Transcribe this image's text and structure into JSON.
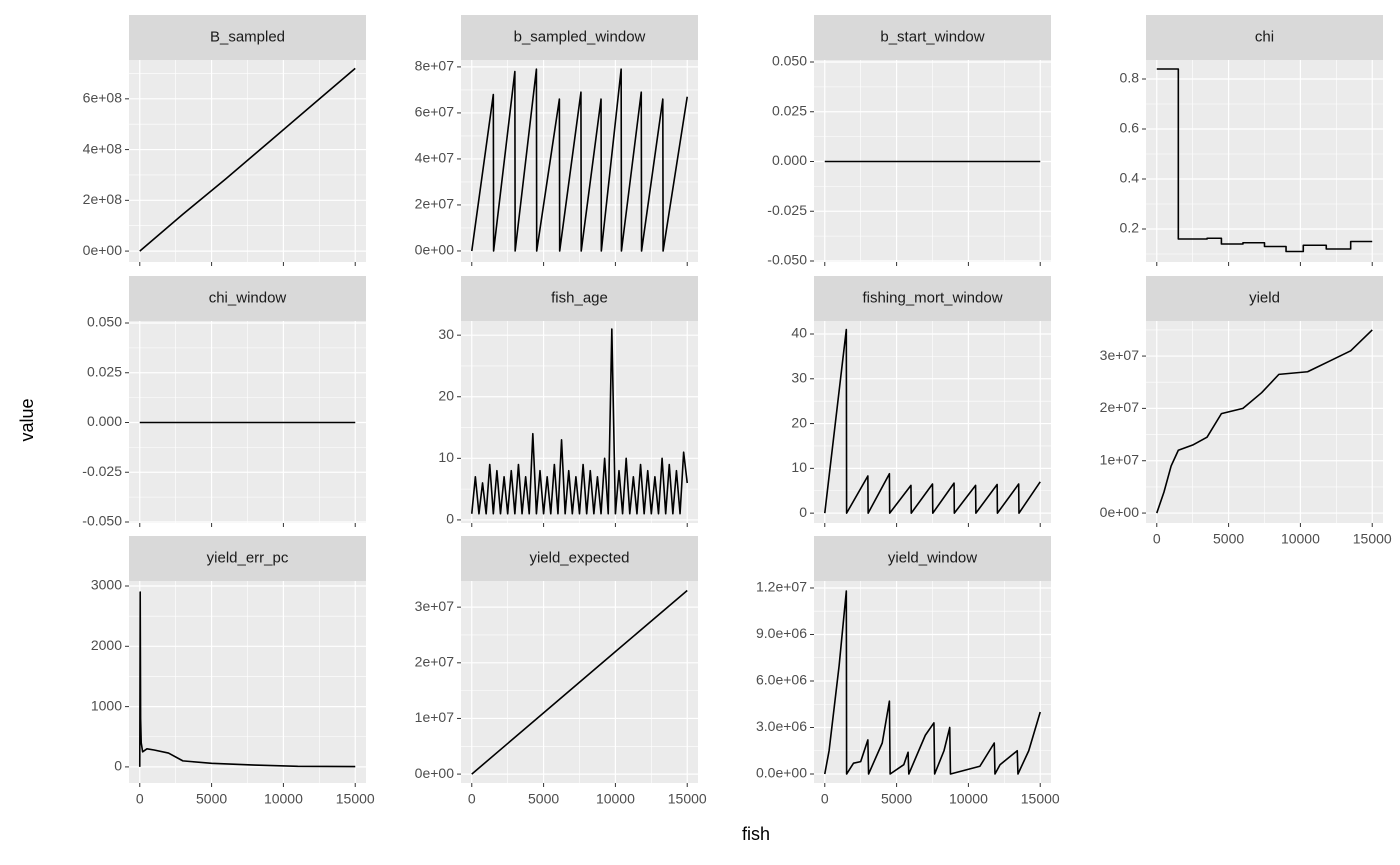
{
  "xlabel": "fish",
  "ylabel": "value",
  "chart_data": [
    {
      "type": "line",
      "title": "B_sampled",
      "color": "#000000",
      "x": [
        0,
        3000,
        6000,
        9000,
        12000,
        15000
      ],
      "values": [
        0,
        145000000,
        285000000,
        430000000,
        575000000,
        720000000
      ],
      "xlim": [
        -750,
        15750
      ],
      "xticks": [
        0,
        5000,
        10000,
        15000
      ],
      "ylim": [
        -43000000,
        753000000
      ],
      "yticks": [
        {
          "value": 0,
          "label": "0e+00"
        },
        {
          "value": 200000000,
          "label": "2e+08"
        },
        {
          "value": 400000000,
          "label": "4e+08"
        },
        {
          "value": 600000000,
          "label": "6e+08"
        }
      ]
    },
    {
      "type": "line",
      "title": "b_sampled_window",
      "color": "#000000",
      "x": [
        0,
        1500,
        1520,
        3000,
        3020,
        4500,
        4520,
        6100,
        6120,
        7600,
        7620,
        9000,
        9020,
        10400,
        10420,
        11800,
        11820,
        13300,
        13320,
        15000
      ],
      "values": [
        0,
        68000000,
        0,
        78000000,
        0,
        79000000,
        0,
        66000000,
        0,
        69000000,
        0,
        66000000,
        0,
        79000000,
        0,
        69000000,
        0,
        66000000,
        0,
        67000000
      ],
      "xlim": [
        -750,
        15750
      ],
      "xticks": [
        0,
        5000,
        10000,
        15000
      ],
      "ylim": [
        -4800000,
        83000000
      ],
      "yticks": [
        {
          "value": 0,
          "label": "0e+00"
        },
        {
          "value": 20000000,
          "label": "2e+07"
        },
        {
          "value": 40000000,
          "label": "4e+07"
        },
        {
          "value": 60000000,
          "label": "6e+07"
        },
        {
          "value": 80000000,
          "label": "8e+07"
        }
      ]
    },
    {
      "type": "line",
      "title": "b_start_window",
      "color": "#000000",
      "x": [
        0,
        15000
      ],
      "values": [
        0,
        0
      ],
      "xlim": [
        -750,
        15750
      ],
      "xticks": [
        0,
        5000,
        10000,
        15000
      ],
      "ylim": [
        -0.0505,
        0.051
      ],
      "yticks": [
        {
          "value": -0.05,
          "label": "-0.050"
        },
        {
          "value": -0.025,
          "label": "-0.025"
        },
        {
          "value": 0,
          "label": "0.000"
        },
        {
          "value": 0.025,
          "label": "0.025"
        },
        {
          "value": 0.05,
          "label": "0.050"
        }
      ]
    },
    {
      "type": "line",
      "title": "chi",
      "color": "#000000",
      "x": [
        0,
        1500,
        1500,
        3500,
        3500,
        4500,
        4500,
        6000,
        6000,
        7500,
        7500,
        9000,
        9000,
        10200,
        10200,
        11800,
        11800,
        13500,
        13500,
        15000
      ],
      "values": [
        0.84,
        0.84,
        0.16,
        0.16,
        0.163,
        0.163,
        0.14,
        0.14,
        0.145,
        0.145,
        0.13,
        0.13,
        0.11,
        0.11,
        0.135,
        0.135,
        0.12,
        0.12,
        0.15,
        0.15
      ],
      "xlim": [
        -750,
        15750
      ],
      "xticks": [
        0,
        5000,
        10000,
        15000
      ],
      "ylim": [
        0.068,
        0.876
      ],
      "yticks": [
        0.2,
        0.4,
        0.6,
        0.8
      ]
    },
    {
      "type": "line",
      "title": "chi_window",
      "color": "#000000",
      "x": [
        0,
        15000
      ],
      "values": [
        0,
        0
      ],
      "xlim": [
        -750,
        15750
      ],
      "xticks": [
        0,
        5000,
        10000,
        15000
      ],
      "ylim": [
        -0.0505,
        0.051
      ],
      "yticks": [
        {
          "value": -0.05,
          "label": "-0.050"
        },
        {
          "value": -0.025,
          "label": "-0.025"
        },
        {
          "value": 0,
          "label": "0.000"
        },
        {
          "value": 0.025,
          "label": "0.025"
        },
        {
          "value": 0.05,
          "label": "0.050"
        }
      ]
    },
    {
      "type": "line",
      "title": "fish_age",
      "color": "#000000",
      "x": [
        0,
        250,
        500,
        750,
        1000,
        1250,
        1500,
        1750,
        2000,
        2250,
        2500,
        2750,
        3000,
        3250,
        3500,
        3750,
        4000,
        4250,
        4500,
        4750,
        5000,
        5250,
        5500,
        5750,
        6000,
        6250,
        6500,
        6750,
        7000,
        7250,
        7500,
        7750,
        8000,
        8250,
        8500,
        8750,
        9000,
        9250,
        9500,
        9750,
        10000,
        10250,
        10500,
        10750,
        11000,
        11250,
        11500,
        11750,
        12000,
        12250,
        12500,
        12750,
        13000,
        13250,
        13500,
        13750,
        14000,
        14250,
        14500,
        14750,
        15000
      ],
      "values": [
        1,
        7,
        1,
        6,
        1,
        9,
        1,
        8,
        1,
        7,
        1,
        8,
        1,
        9,
        1,
        7,
        1,
        14,
        1,
        8,
        1,
        7,
        1,
        9,
        1,
        13,
        1,
        8,
        1,
        7,
        1,
        9,
        1,
        8,
        1,
        7,
        1,
        10,
        1,
        31,
        1,
        8,
        1,
        10,
        1,
        7,
        1,
        9,
        1,
        8,
        1,
        7,
        1,
        10,
        1,
        9,
        1,
        8,
        1,
        11,
        6
      ],
      "xlim": [
        -750,
        15750
      ],
      "xticks": [
        0,
        5000,
        10000,
        15000
      ],
      "ylim": [
        -0.5,
        32.3
      ],
      "yticks": [
        0,
        10,
        20,
        30
      ]
    },
    {
      "type": "line",
      "title": "fishing_mort_window",
      "color": "#000000",
      "x": [
        0,
        1500,
        1520,
        3000,
        3020,
        4500,
        4520,
        6000,
        6020,
        7500,
        7520,
        9000,
        9020,
        10500,
        10520,
        12000,
        12020,
        13500,
        13520,
        15000
      ],
      "values": [
        0,
        41,
        0,
        8.3,
        0,
        8.8,
        0,
        6.2,
        0,
        6.5,
        0,
        6.7,
        0,
        6.2,
        0,
        6.4,
        0,
        6.5,
        0,
        7
      ],
      "xlim": [
        -750,
        15750
      ],
      "xticks": [
        0,
        5000,
        10000,
        15000
      ],
      "ylim": [
        -2.2,
        42.9
      ],
      "yticks": [
        0,
        10,
        20,
        30,
        40
      ]
    },
    {
      "type": "line",
      "title": "yield",
      "color": "#000000",
      "x": [
        0,
        500,
        1000,
        1500,
        2500,
        3500,
        4500,
        6000,
        7300,
        8500,
        10500,
        12000,
        13500,
        15000
      ],
      "values": [
        0,
        4000000,
        9000000,
        12000000,
        13000000,
        14500000,
        19000000,
        20000000,
        23000000,
        26500000,
        27000000,
        29000000,
        31000000,
        35000000
      ],
      "xlim": [
        -750,
        15750
      ],
      "xticks": [
        0,
        5000,
        10000,
        15000
      ],
      "ylim": [
        -1900000,
        36700000
      ],
      "yticks": [
        {
          "value": 0,
          "label": "0e+00"
        },
        {
          "value": 10000000,
          "label": "1e+07"
        },
        {
          "value": 20000000,
          "label": "2e+07"
        },
        {
          "value": 30000000,
          "label": "3e+07"
        }
      ]
    },
    {
      "type": "line",
      "title": "yield_err_pc",
      "color": "#000000",
      "x": [
        0,
        30,
        60,
        100,
        200,
        500,
        1000,
        2000,
        3000,
        5000,
        8000,
        11000,
        15000
      ],
      "values": [
        0,
        2900,
        800,
        400,
        250,
        300,
        280,
        230,
        100,
        60,
        30,
        10,
        5
      ],
      "xlim": [
        -750,
        15750
      ],
      "xticks": [
        0,
        5000,
        10000,
        15000
      ],
      "ylim": [
        -267,
        3083
      ],
      "yticks": [
        0,
        1000,
        2000,
        3000
      ]
    },
    {
      "type": "line",
      "title": "yield_expected",
      "color": "#000000",
      "x": [
        0,
        5000,
        10000,
        15000
      ],
      "values": [
        0,
        11000000,
        22000000,
        33000000
      ],
      "xlim": [
        -750,
        15750
      ],
      "xticks": [
        0,
        5000,
        10000,
        15000
      ],
      "ylim": [
        -1600000,
        34700000
      ],
      "yticks": [
        {
          "value": 0,
          "label": "0e+00"
        },
        {
          "value": 10000000,
          "label": "1e+07"
        },
        {
          "value": 20000000,
          "label": "2e+07"
        },
        {
          "value": 30000000,
          "label": "3e+07"
        }
      ]
    },
    {
      "type": "line",
      "title": "yield_window",
      "color": "#000000",
      "x": [
        0,
        300,
        1000,
        1500,
        1520,
        2000,
        2500,
        3000,
        3050,
        4000,
        4500,
        4550,
        5500,
        5800,
        5850,
        7000,
        7600,
        7650,
        8300,
        8700,
        8750,
        10800,
        11800,
        11850,
        12200,
        13000,
        13400,
        13450,
        14200,
        15000
      ],
      "values": [
        0,
        1500000,
        7000000,
        11800000,
        0,
        700000,
        800000,
        2200000,
        0,
        2000000,
        4700000,
        0,
        600000,
        1400000,
        0,
        2500000,
        3300000,
        0,
        1500000,
        3000000,
        0,
        500000,
        2000000,
        0,
        600000,
        1200000,
        1500000,
        0,
        1500000,
        4000000
      ],
      "xlim": [
        -750,
        15750
      ],
      "xticks": [
        0,
        5000,
        10000,
        15000
      ],
      "ylim": [
        -580000,
        12450000
      ],
      "yticks": [
        {
          "value": 0,
          "label": "0.0e+00"
        },
        {
          "value": 3000000,
          "label": "3.0e+06"
        },
        {
          "value": 6000000,
          "label": "6.0e+06"
        },
        {
          "value": 9000000,
          "label": "9.0e+06"
        },
        {
          "value": 12000000,
          "label": "1.2e+07"
        }
      ]
    }
  ]
}
